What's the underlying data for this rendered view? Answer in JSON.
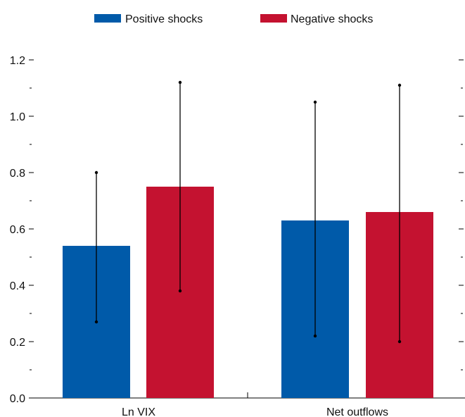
{
  "chart_data": {
    "type": "bar",
    "categories": [
      "Ln VIX",
      "Net outflows"
    ],
    "series": [
      {
        "name": "Positive shocks",
        "color": "#005aa9",
        "values": [
          0.54,
          0.63
        ],
        "ci_low": [
          0.27,
          0.22
        ],
        "ci_high": [
          0.8,
          1.05
        ]
      },
      {
        "name": "Negative shocks",
        "color": "#c41230",
        "values": [
          0.75,
          0.66
        ],
        "ci_low": [
          0.38,
          0.2
        ],
        "ci_high": [
          1.12,
          1.11
        ]
      }
    ],
    "yticks": [
      "0.0",
      "0.2",
      "0.4",
      "0.6",
      "0.8",
      "1.0",
      "1.2"
    ],
    "ylim": [
      0,
      1.2
    ],
    "legend": "top",
    "grid": false,
    "error_bars": true
  }
}
